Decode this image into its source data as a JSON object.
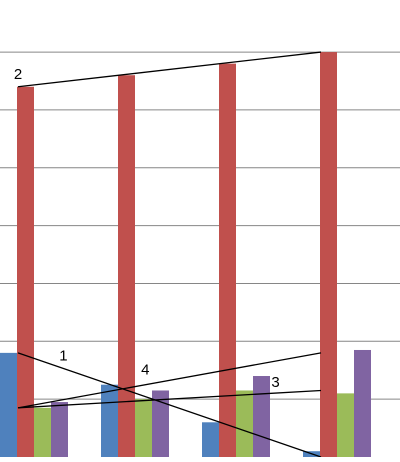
{
  "chart_data": {
    "type": "bar",
    "categories": [
      "",
      "",
      "",
      ""
    ],
    "series": [
      {
        "values": [
          1.8,
          1.25,
          0.6,
          0.1
        ],
        "color": "#4f81bd"
      },
      {
        "values": [
          6.4,
          6.6,
          6.8,
          7.0
        ],
        "color": "#c0504d"
      },
      {
        "values": [
          0.85,
          1.0,
          1.15,
          1.1
        ],
        "color": "#9bbb59"
      },
      {
        "values": [
          0.95,
          1.15,
          1.4,
          1.85
        ],
        "color": "#8064a2"
      }
    ],
    "ylim": [
      0,
      7.9
    ],
    "grid": true,
    "annotations": [
      {
        "label": "1",
        "from": [
          0,
          1.8
        ],
        "to": [
          3,
          0
        ]
      },
      {
        "label": "2",
        "from": [
          0,
          6.4
        ],
        "to": [
          3,
          7.0
        ]
      },
      {
        "label": "3",
        "from": [
          0,
          0.85
        ],
        "to": [
          3,
          1.15
        ]
      },
      {
        "label": "4",
        "from": [
          0,
          0.85
        ],
        "to": [
          3,
          1.8
        ]
      }
    ],
    "colors": {
      "grid": "#868686",
      "line": "#000000",
      "background": "#ffffff"
    }
  }
}
